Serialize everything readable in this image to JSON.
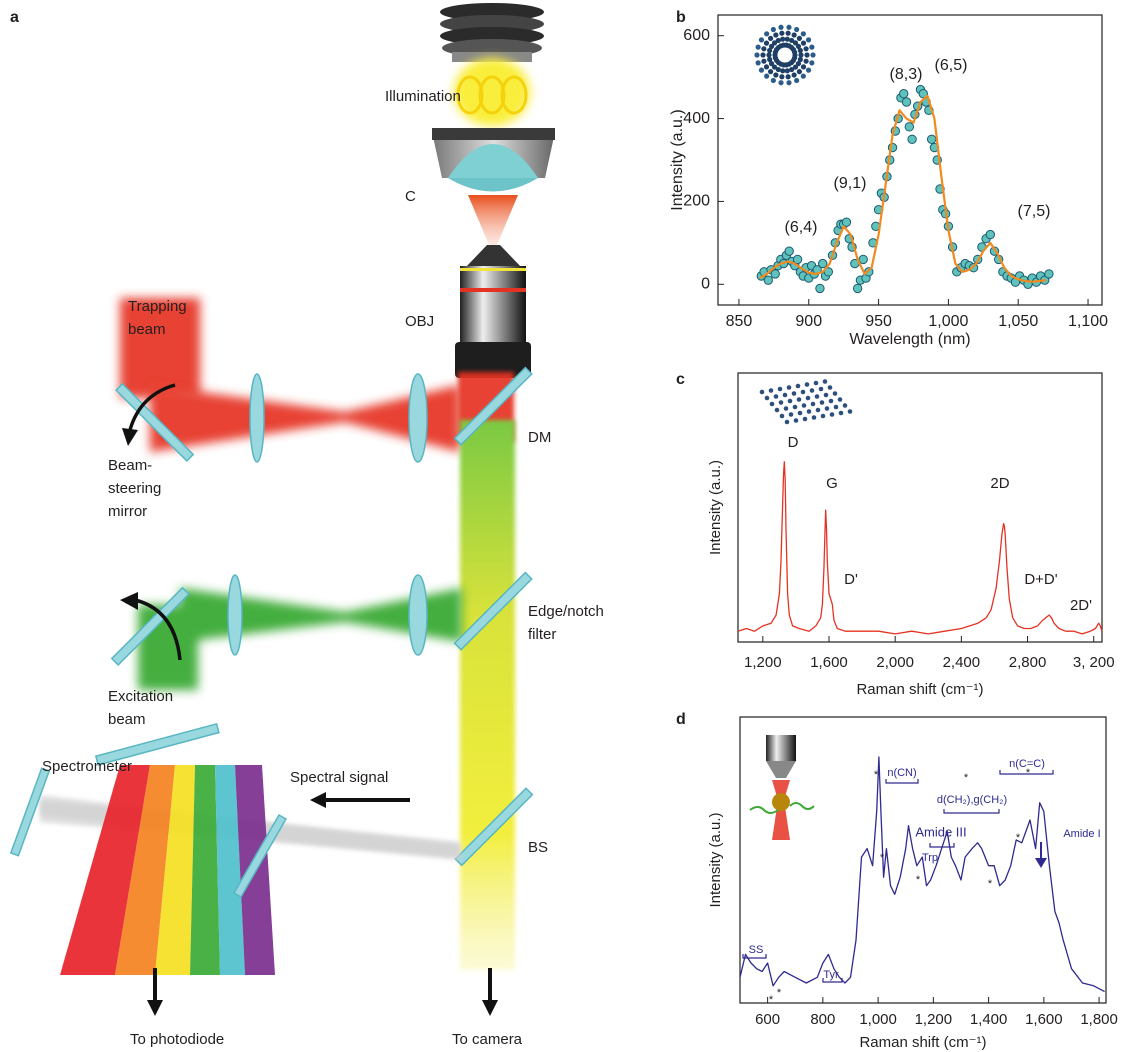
{
  "diagram": {
    "panel": "a",
    "labels": [
      [
        "Illumination"
      ],
      [
        "C"
      ],
      [
        "OBJ"
      ],
      [
        "Trapping",
        "beam"
      ],
      [
        "DM"
      ],
      [
        "Beam-",
        "steering",
        "mirror"
      ],
      [
        "Edge/notch",
        "filter"
      ],
      [
        "Excitation",
        "beam"
      ],
      [
        "Spectrometer"
      ],
      [
        "Spectral signal"
      ],
      [
        "BS"
      ],
      [
        "To photodiode"
      ],
      [
        "To camera"
      ]
    ]
  },
  "chart_data": [
    {
      "panel": "b",
      "type": "scatter",
      "xlabel": "Wavelength (nm)",
      "ylabel": "Intensity (a.u.)",
      "xlim": [
        835,
        1110
      ],
      "xticks": [
        850,
        900,
        950,
        {
          "value": 1000,
          "label": "1,000"
        },
        {
          "value": 1050,
          "label": "1,050"
        },
        {
          "value": 1100,
          "label": "1,100"
        }
      ],
      "ylim": [
        -50,
        650
      ],
      "yticks": [
        0,
        200,
        400,
        600
      ],
      "series": [
        {
          "type": "scatter",
          "color": "#5fc3bb",
          "x": [
            866,
            868,
            871,
            873,
            876,
            878,
            880,
            882,
            884,
            886,
            888,
            890,
            892,
            894,
            896,
            898,
            900,
            902,
            904,
            906,
            908,
            910,
            912,
            914,
            917,
            919,
            921,
            923,
            925,
            927,
            929,
            931,
            933,
            935,
            937,
            939,
            941,
            943,
            946,
            948,
            950,
            952,
            954,
            956,
            958,
            960,
            962,
            964,
            966,
            968,
            970,
            972,
            974,
            976,
            978,
            980,
            982,
            984,
            986,
            988,
            990,
            992,
            994,
            996,
            998,
            1000,
            1003,
            1006,
            1009,
            1012,
            1015,
            1018,
            1021,
            1024,
            1027,
            1030,
            1033,
            1036,
            1039,
            1042,
            1045,
            1048,
            1051,
            1054,
            1057,
            1060,
            1063,
            1066,
            1069,
            1072
          ],
          "values": [
            20,
            30,
            10,
            35,
            25,
            45,
            60,
            50,
            70,
            80,
            55,
            45,
            60,
            30,
            20,
            40,
            15,
            45,
            25,
            35,
            -10,
            50,
            20,
            30,
            70,
            100,
            130,
            145,
            145,
            150,
            110,
            90,
            50,
            -10,
            10,
            60,
            15,
            30,
            100,
            140,
            180,
            220,
            210,
            260,
            300,
            330,
            370,
            400,
            450,
            460,
            440,
            380,
            350,
            410,
            430,
            470,
            460,
            440,
            420,
            350,
            330,
            300,
            230,
            180,
            170,
            140,
            90,
            30,
            40,
            50,
            45,
            40,
            60,
            90,
            110,
            120,
            80,
            60,
            30,
            20,
            15,
            5,
            20,
            10,
            0,
            15,
            5,
            20,
            10,
            25
          ]
        },
        {
          "type": "line",
          "color": "#f28a1e",
          "x": [
            865,
            870,
            875,
            880,
            885,
            890,
            895,
            900,
            905,
            910,
            915,
            920,
            925,
            930,
            935,
            940,
            945,
            950,
            955,
            960,
            965,
            970,
            975,
            980,
            985,
            990,
            995,
            1000,
            1005,
            1010,
            1015,
            1020,
            1025,
            1030,
            1035,
            1040,
            1045,
            1050,
            1055,
            1060,
            1065,
            1070
          ],
          "values": [
            15,
            25,
            40,
            50,
            55,
            50,
            38,
            28,
            25,
            30,
            50,
            100,
            140,
            120,
            60,
            25,
            40,
            120,
            240,
            360,
            420,
            400,
            390,
            440,
            455,
            400,
            260,
            130,
            50,
            30,
            35,
            50,
            80,
            100,
            75,
            40,
            20,
            12,
            8,
            6,
            8,
            10
          ]
        }
      ],
      "annotations": [
        "(6,4)",
        "(9,1)",
        "(8,3)",
        "(6,5)",
        "(7,5)"
      ]
    },
    {
      "panel": "c",
      "type": "line",
      "xlabel": "Raman shift (cm⁻¹)",
      "ylabel": "Intensity (a.u.)",
      "color": "#e53323",
      "xlim": [
        1050,
        3250
      ],
      "xticks": [
        {
          "value": 1200,
          "label": "1,200"
        },
        {
          "value": 1600,
          "label": "1,600"
        },
        {
          "value": 2000,
          "label": "2,000"
        },
        {
          "value": 2400,
          "label": "2,400"
        },
        {
          "value": 2800,
          "label": "2,800"
        },
        {
          "value": 3200,
          "label": "3, 200"
        }
      ],
      "ylim": [
        0,
        100
      ],
      "x": [
        1050,
        1100,
        1150,
        1200,
        1250,
        1280,
        1300,
        1310,
        1320,
        1325,
        1330,
        1335,
        1340,
        1350,
        1360,
        1380,
        1420,
        1480,
        1520,
        1550,
        1560,
        1570,
        1575,
        1580,
        1585,
        1590,
        1600,
        1610,
        1620,
        1630,
        1650,
        1700,
        1800,
        1900,
        2000,
        2100,
        2200,
        2300,
        2400,
        2450,
        2500,
        2550,
        2580,
        2610,
        2630,
        2645,
        2655,
        2660,
        2665,
        2675,
        2690,
        2710,
        2740,
        2780,
        2820,
        2860,
        2890,
        2910,
        2930,
        2945,
        2960,
        2990,
        3030,
        3080,
        3130,
        3180,
        3210,
        3230,
        3240,
        3250
      ],
      "values": [
        4,
        5,
        4,
        6,
        7,
        10,
        18,
        30,
        52,
        62,
        67,
        60,
        42,
        18,
        10,
        6,
        5,
        4,
        6,
        9,
        14,
        28,
        40,
        49,
        42,
        30,
        18,
        16,
        14,
        8,
        5,
        4,
        4,
        4,
        3,
        4,
        3,
        4,
        5,
        6,
        7,
        9,
        12,
        20,
        30,
        40,
        44,
        43,
        40,
        28,
        16,
        9,
        6,
        5,
        5,
        6,
        8,
        9,
        10,
        9,
        7,
        5,
        4,
        4,
        3,
        4,
        5,
        7,
        6,
        4
      ],
      "annotations": [
        "D",
        "G",
        "D'",
        "2D",
        "D+D'",
        "2D'"
      ]
    },
    {
      "panel": "d",
      "type": "line",
      "xlabel": "Raman shift (cm⁻¹)",
      "ylabel": "Intensity (a.u.)",
      "color": "#2e2a8f",
      "xlim": [
        500,
        1825
      ],
      "xticks": [
        600,
        800,
        {
          "value": 1000,
          "label": "1,000"
        },
        {
          "value": 1200,
          "label": "1,200"
        },
        {
          "value": 1400,
          "label": "1,400"
        },
        {
          "value": 1600,
          "label": "1,600"
        },
        {
          "value": 1800,
          "label": "1,800"
        }
      ],
      "ylim": [
        0,
        100
      ],
      "x": [
        500,
        520,
        540,
        560,
        580,
        600,
        620,
        640,
        660,
        700,
        740,
        780,
        800,
        820,
        840,
        860,
        880,
        900,
        920,
        940,
        960,
        980,
        995,
        1003,
        1010,
        1020,
        1030,
        1045,
        1060,
        1080,
        1100,
        1110,
        1125,
        1140,
        1160,
        1175,
        1190,
        1210,
        1230,
        1250,
        1265,
        1280,
        1300,
        1315,
        1340,
        1360,
        1375,
        1400,
        1420,
        1440,
        1460,
        1480,
        1500,
        1520,
        1550,
        1570,
        1585,
        1600,
        1620,
        1640,
        1655,
        1670,
        1700,
        1740,
        1780,
        1820
      ],
      "values": [
        9,
        17,
        14,
        12,
        11,
        14,
        6,
        9,
        11,
        9,
        7,
        9,
        14,
        17,
        12,
        9,
        7,
        9,
        22,
        51,
        54,
        48,
        67,
        86,
        67,
        44,
        54,
        41,
        38,
        44,
        54,
        62,
        54,
        48,
        51,
        41,
        43,
        48,
        54,
        60,
        51,
        48,
        43,
        51,
        54,
        56,
        54,
        48,
        48,
        41,
        43,
        48,
        57,
        56,
        64,
        54,
        70,
        67,
        48,
        32,
        28,
        22,
        12,
        7,
        6,
        4
      ],
      "annotations": [
        "SS",
        "Tyr",
        "n(CN)",
        "d(CH₂),g(CH₂)",
        "Amide III",
        "Trp",
        "n(C=C)",
        "Amide I",
        "*",
        "*",
        "*",
        "*",
        "*",
        "*",
        "*",
        "*",
        "*"
      ]
    }
  ]
}
